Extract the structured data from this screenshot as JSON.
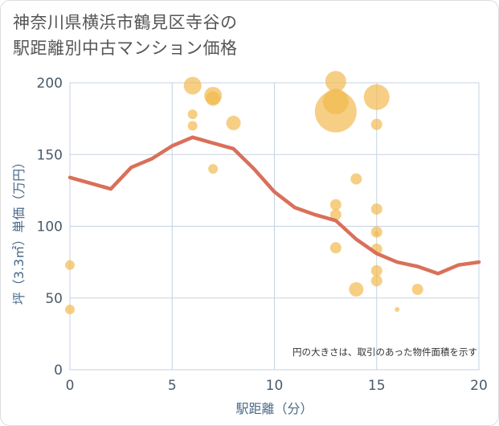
{
  "title_lines": [
    "神奈川県横浜市鶴見区寺谷の",
    "駅距離別中古マンション価格"
  ],
  "chart_data": {
    "type": "scatter",
    "title": "神奈川県横浜市鶴見区寺谷の駅距離別中古マンション価格",
    "xlabel": "駅距離（分）",
    "ylabel": "坪（3.3㎡）単価（万円）",
    "xlim": [
      0,
      20
    ],
    "ylim": [
      0,
      200
    ],
    "x_ticks": [
      "0",
      "5",
      "10",
      "15",
      "20"
    ],
    "y_ticks": [
      "0",
      "50",
      "100",
      "150",
      "200"
    ],
    "grid": true,
    "note": "円の大きさは、取引のあった物件面積を示す",
    "colors": {
      "bubble": "#f2b84b",
      "line": "#d9705a",
      "grid": "#c5d3e0"
    },
    "series": [
      {
        "type": "bubble",
        "points": [
          {
            "x": 0,
            "y": 73,
            "size": 6
          },
          {
            "x": 0,
            "y": 42,
            "size": 6
          },
          {
            "x": 6,
            "y": 198,
            "size": 11
          },
          {
            "x": 6,
            "y": 178,
            "size": 6
          },
          {
            "x": 6,
            "y": 170,
            "size": 6
          },
          {
            "x": 7,
            "y": 191,
            "size": 11
          },
          {
            "x": 7,
            "y": 189,
            "size": 9
          },
          {
            "x": 7,
            "y": 140,
            "size": 6
          },
          {
            "x": 8,
            "y": 172,
            "size": 9
          },
          {
            "x": 13,
            "y": 201,
            "size": 13
          },
          {
            "x": 13,
            "y": 187,
            "size": 16
          },
          {
            "x": 13,
            "y": 180,
            "size": 26
          },
          {
            "x": 13,
            "y": 115,
            "size": 7
          },
          {
            "x": 13,
            "y": 108,
            "size": 7
          },
          {
            "x": 13,
            "y": 85,
            "size": 7
          },
          {
            "x": 14,
            "y": 133,
            "size": 7
          },
          {
            "x": 14,
            "y": 56,
            "size": 9
          },
          {
            "x": 15,
            "y": 190,
            "size": 16
          },
          {
            "x": 15,
            "y": 171,
            "size": 7
          },
          {
            "x": 15,
            "y": 112,
            "size": 7
          },
          {
            "x": 15,
            "y": 96,
            "size": 7
          },
          {
            "x": 15,
            "y": 95,
            "size": 3
          },
          {
            "x": 15,
            "y": 84,
            "size": 7
          },
          {
            "x": 15,
            "y": 69,
            "size": 7
          },
          {
            "x": 15,
            "y": 62,
            "size": 7
          },
          {
            "x": 16,
            "y": 42,
            "size": 3
          },
          {
            "x": 17,
            "y": 56,
            "size": 7
          }
        ]
      },
      {
        "type": "line",
        "x": [
          0,
          1,
          2,
          3,
          4,
          5,
          6,
          7,
          8,
          9,
          10,
          11,
          12,
          13,
          14,
          15,
          16,
          17,
          18,
          19,
          20
        ],
        "y": [
          134,
          130,
          126,
          141,
          147,
          156,
          162,
          158,
          154,
          140,
          124,
          113,
          108,
          104,
          91,
          81,
          75,
          72,
          67,
          73,
          75
        ]
      }
    ]
  }
}
